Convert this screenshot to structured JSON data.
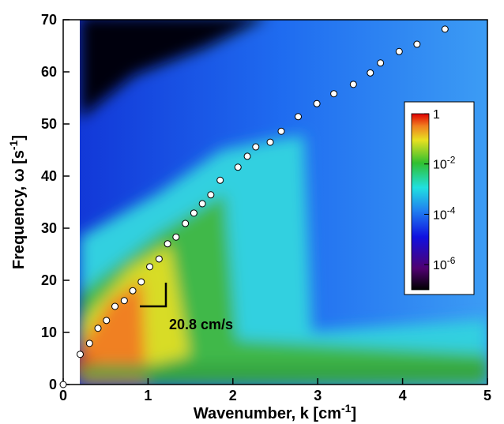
{
  "chart_data": {
    "type": "scatter",
    "xlabel": {
      "text": "Wavenumber, k  [cm",
      "sup": "-1",
      "end": "]"
    },
    "ylabel": {
      "text": "Frequency, ω  [s",
      "sup": "-1",
      "end": "]"
    },
    "xlim": [
      0,
      5
    ],
    "ylim": [
      0,
      70
    ],
    "xticks": [
      0,
      1,
      2,
      3,
      4,
      5
    ],
    "yticks": [
      0,
      10,
      20,
      30,
      40,
      50,
      60,
      70
    ],
    "x": [
      0,
      0.2,
      0.31,
      0.41,
      0.51,
      0.61,
      0.72,
      0.82,
      0.92,
      1.02,
      1.13,
      1.23,
      1.33,
      1.44,
      1.54,
      1.64,
      1.74,
      1.85,
      2.06,
      2.17,
      2.27,
      2.44,
      2.57,
      2.77,
      2.99,
      3.19,
      3.42,
      3.62,
      3.74,
      3.96,
      4.17,
      4.5
    ],
    "values": [
      0,
      5.8,
      7.9,
      10.8,
      12.3,
      15.0,
      16.1,
      18.0,
      19.7,
      22.6,
      24.1,
      27.0,
      28.3,
      30.9,
      32.9,
      34.7,
      36.4,
      39.2,
      41.7,
      43.8,
      45.6,
      46.5,
      48.6,
      51.4,
      53.9,
      55.8,
      57.6,
      59.8,
      61.7,
      63.9,
      65.3,
      68.2
    ],
    "color": "#ffffff",
    "annotation": "20.8 cm/s",
    "colorbar": {
      "scale": "log",
      "lim": [
        1e-07,
        1
      ],
      "ticks": [
        1,
        {
          "value": 0.01,
          "base": "10",
          "exponent": "-2"
        },
        {
          "value": 0.0001,
          "base": "10",
          "exponent": "-4"
        },
        {
          "value": 1e-06,
          "base": "10",
          "exponent": "-6"
        }
      ]
    }
  }
}
